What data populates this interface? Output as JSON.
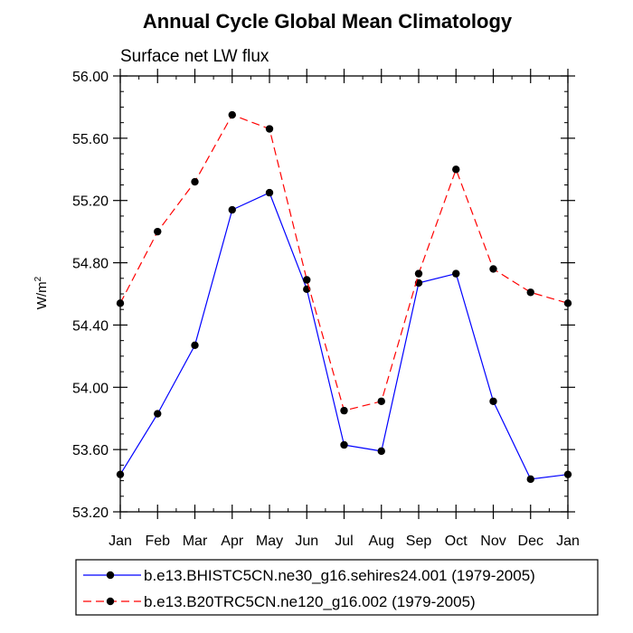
{
  "chart_data": {
    "type": "line",
    "title": "Annual Cycle Global Mean Climatology",
    "subtitle": "Surface net LW flux",
    "xlabel": "",
    "ylabel": "W/m",
    "ylabel_superscript": "2",
    "categories": [
      "Jan",
      "Feb",
      "Mar",
      "Apr",
      "May",
      "Jun",
      "Jul",
      "Aug",
      "Sep",
      "Oct",
      "Nov",
      "Dec",
      "Jan"
    ],
    "ylim": [
      53.2,
      56.0
    ],
    "yticks": [
      53.2,
      53.6,
      54.0,
      54.4,
      54.8,
      55.2,
      55.6,
      56.0
    ],
    "ytick_labels": [
      "53.20",
      "53.60",
      "54.00",
      "54.40",
      "54.80",
      "55.20",
      "55.60",
      "56.00"
    ],
    "series": [
      {
        "name": "b.e13.BHISTC5CN.ne30_g16.sehires24.001 (1979-2005)",
        "color": "#0000ff",
        "dash": "solid",
        "values": [
          53.44,
          53.83,
          54.27,
          55.14,
          55.25,
          54.63,
          53.63,
          53.59,
          54.67,
          54.73,
          53.91,
          53.41,
          53.44
        ]
      },
      {
        "name": "b.e13.B20TRC5CN.ne120_g16.002 (1979-2005)",
        "color": "#ff0000",
        "dash": "dashed",
        "values": [
          54.54,
          55.0,
          55.32,
          55.75,
          55.66,
          54.69,
          53.85,
          53.91,
          54.73,
          55.4,
          54.76,
          54.61,
          54.54
        ]
      }
    ],
    "legend_position": "bottom"
  }
}
